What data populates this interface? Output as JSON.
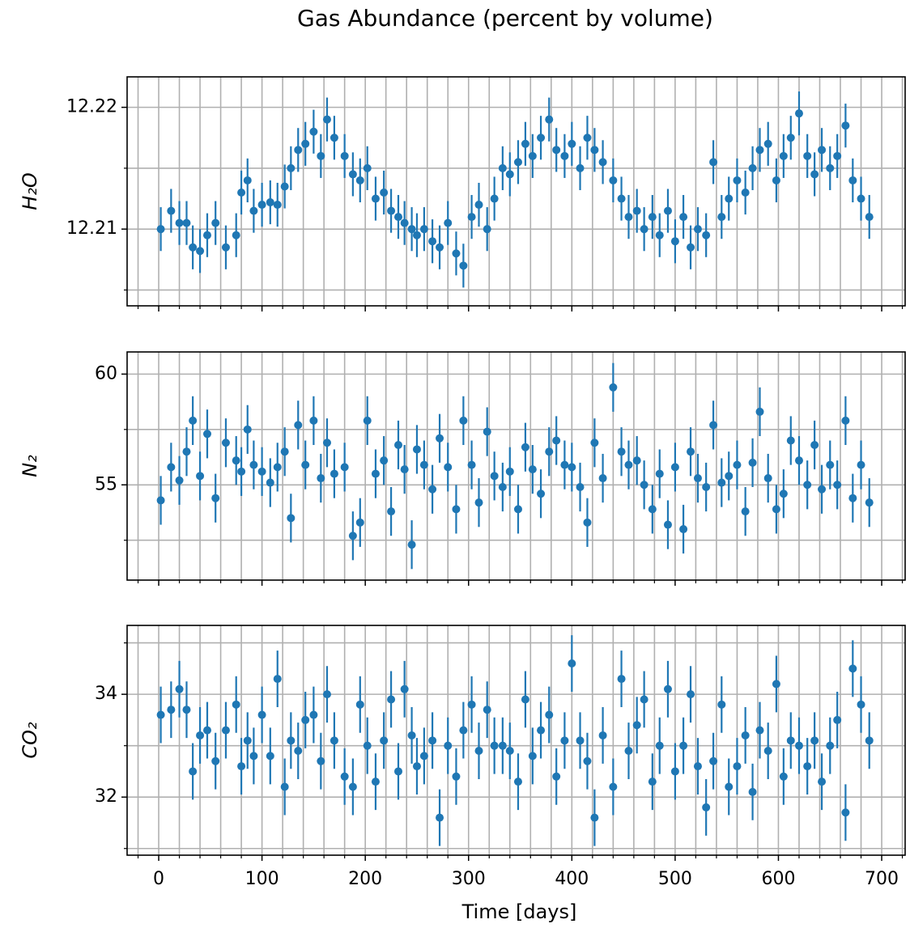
{
  "title": "Gas Abundance (percent by volume)",
  "chart_data": [
    {
      "type": "errorbar",
      "ylabel": "H₂O",
      "color": "#1f77b4",
      "grid": true,
      "xlim": [
        -30.6,
        722.7
      ],
      "xticks": [
        0,
        100,
        200,
        300,
        400,
        500,
        600,
        700
      ],
      "xminorticks": [
        -20,
        20,
        40,
        60,
        80,
        120,
        140,
        160,
        180,
        220,
        240,
        260,
        280,
        320,
        340,
        360,
        380,
        420,
        440,
        460,
        480,
        520,
        540,
        560,
        580,
        620,
        640,
        660,
        680,
        720
      ],
      "ylim": [
        12.2037,
        12.2225
      ],
      "yticks": [
        12.21,
        12.22
      ],
      "yminorticks": [
        12.205,
        12.215
      ],
      "yerr": 0.0018,
      "x": [
        2,
        12,
        20,
        27,
        33,
        40,
        47,
        55,
        65,
        75,
        80,
        86,
        92,
        100,
        108,
        115,
        122,
        128,
        135,
        142,
        150,
        157,
        163,
        170,
        180,
        188,
        195,
        202,
        210,
        218,
        225,
        232,
        238,
        245,
        250,
        257,
        265,
        272,
        280,
        288,
        295,
        303,
        310,
        318,
        325,
        333,
        340,
        348,
        355,
        362,
        370,
        378,
        385,
        393,
        400,
        408,
        415,
        422,
        430,
        440,
        448,
        455,
        463,
        470,
        478,
        485,
        493,
        500,
        508,
        515,
        522,
        530,
        537,
        545,
        552,
        560,
        568,
        575,
        582,
        590,
        598,
        605,
        612,
        620,
        628,
        635,
        642,
        650,
        657,
        665,
        672,
        680,
        688
      ],
      "values": [
        12.21,
        12.2115,
        12.2105,
        12.2105,
        12.2085,
        12.2082,
        12.2095,
        12.2105,
        12.2085,
        12.2095,
        12.213,
        12.214,
        12.2115,
        12.212,
        12.2122,
        12.212,
        12.2135,
        12.215,
        12.2165,
        12.217,
        12.218,
        12.216,
        12.219,
        12.2175,
        12.216,
        12.2145,
        12.214,
        12.215,
        12.2125,
        12.213,
        12.2115,
        12.211,
        12.2105,
        12.21,
        12.2095,
        12.21,
        12.209,
        12.2085,
        12.2105,
        12.208,
        12.207,
        12.211,
        12.212,
        12.21,
        12.2125,
        12.215,
        12.2145,
        12.2155,
        12.217,
        12.216,
        12.2175,
        12.219,
        12.2165,
        12.216,
        12.217,
        12.215,
        12.2175,
        12.2165,
        12.2155,
        12.214,
        12.2125,
        12.211,
        12.2115,
        12.21,
        12.211,
        12.2095,
        12.2115,
        12.209,
        12.211,
        12.2085,
        12.21,
        12.2095,
        12.2155,
        12.211,
        12.2125,
        12.214,
        12.213,
        12.215,
        12.2165,
        12.217,
        12.214,
        12.216,
        12.2175,
        12.2195,
        12.216,
        12.2145,
        12.2165,
        12.215,
        12.216,
        12.2185,
        12.214,
        12.2125,
        12.211
      ]
    },
    {
      "type": "errorbar",
      "ylabel": "N₂",
      "color": "#1f77b4",
      "grid": true,
      "xlim": [
        -30.6,
        722.7
      ],
      "xticks": [
        0,
        100,
        200,
        300,
        400,
        500,
        600,
        700
      ],
      "xminorticks": [
        -20,
        20,
        40,
        60,
        80,
        120,
        140,
        160,
        180,
        220,
        240,
        260,
        280,
        320,
        340,
        360,
        380,
        420,
        440,
        460,
        480,
        520,
        540,
        560,
        580,
        620,
        640,
        660,
        680,
        720
      ],
      "ylim": [
        50.7,
        61.0
      ],
      "yticks": [
        55,
        60
      ],
      "yminorticks": [
        52.5,
        57.5
      ],
      "yerr": 1.1,
      "x": [
        2,
        12,
        20,
        27,
        33,
        40,
        47,
        55,
        65,
        75,
        80,
        86,
        92,
        100,
        108,
        115,
        122,
        128,
        135,
        142,
        150,
        157,
        163,
        170,
        180,
        188,
        195,
        202,
        210,
        218,
        225,
        232,
        238,
        245,
        250,
        257,
        265,
        272,
        280,
        288,
        295,
        303,
        310,
        318,
        325,
        333,
        340,
        348,
        355,
        362,
        370,
        378,
        385,
        393,
        400,
        408,
        415,
        422,
        430,
        440,
        448,
        455,
        463,
        470,
        478,
        485,
        493,
        500,
        508,
        515,
        522,
        530,
        537,
        545,
        552,
        560,
        568,
        575,
        582,
        590,
        598,
        605,
        612,
        620,
        628,
        635,
        642,
        650,
        657,
        665,
        672,
        680,
        688
      ],
      "values": [
        54.3,
        55.8,
        55.2,
        56.5,
        57.9,
        55.4,
        57.3,
        54.4,
        56.9,
        56.1,
        55.6,
        57.5,
        55.9,
        55.6,
        55.1,
        55.8,
        56.5,
        53.5,
        57.7,
        55.9,
        57.9,
        55.3,
        56.9,
        55.5,
        55.8,
        52.7,
        53.3,
        57.9,
        55.5,
        56.1,
        53.8,
        56.8,
        55.7,
        52.3,
        56.6,
        55.9,
        54.8,
        57.1,
        55.8,
        53.9,
        57.9,
        55.9,
        54.2,
        57.4,
        55.4,
        54.9,
        55.6,
        53.9,
        56.7,
        55.7,
        54.6,
        56.5,
        57.0,
        55.9,
        55.8,
        54.9,
        53.3,
        56.9,
        55.3,
        59.4,
        56.5,
        55.9,
        56.1,
        55.0,
        53.9,
        55.5,
        53.2,
        55.8,
        53.0,
        56.5,
        55.3,
        54.9,
        57.7,
        55.1,
        55.4,
        55.9,
        53.8,
        56.0,
        58.3,
        55.3,
        53.9,
        54.6,
        57.0,
        56.1,
        55.0,
        56.8,
        54.8,
        55.9,
        55.0,
        57.9,
        54.4,
        55.9,
        54.2
      ]
    },
    {
      "type": "errorbar",
      "ylabel": "CO₂",
      "xlabel": "Time [days]",
      "color": "#1f77b4",
      "grid": true,
      "xlim": [
        -30.6,
        722.7
      ],
      "xticks": [
        0,
        100,
        200,
        300,
        400,
        500,
        600,
        700
      ],
      "xminorticks": [
        -20,
        20,
        40,
        60,
        80,
        120,
        140,
        160,
        180,
        220,
        240,
        260,
        280,
        320,
        340,
        360,
        380,
        420,
        440,
        460,
        480,
        520,
        540,
        560,
        580,
        620,
        640,
        660,
        680,
        720
      ],
      "ylim": [
        30.87,
        35.34
      ],
      "yticks": [
        32,
        34
      ],
      "yminorticks": [
        31,
        33,
        35
      ],
      "yerr": 0.55,
      "x": [
        2,
        12,
        20,
        27,
        33,
        40,
        47,
        55,
        65,
        75,
        80,
        86,
        92,
        100,
        108,
        115,
        122,
        128,
        135,
        142,
        150,
        157,
        163,
        170,
        180,
        188,
        195,
        202,
        210,
        218,
        225,
        232,
        238,
        245,
        250,
        257,
        265,
        272,
        280,
        288,
        295,
        303,
        310,
        318,
        325,
        333,
        340,
        348,
        355,
        362,
        370,
        378,
        385,
        393,
        400,
        408,
        415,
        422,
        430,
        440,
        448,
        455,
        463,
        470,
        478,
        485,
        493,
        500,
        508,
        515,
        522,
        530,
        537,
        545,
        552,
        560,
        568,
        575,
        582,
        590,
        598,
        605,
        612,
        620,
        628,
        635,
        642,
        650,
        657,
        665,
        672,
        680,
        688
      ],
      "values": [
        33.6,
        33.7,
        34.1,
        33.7,
        32.5,
        33.2,
        33.3,
        32.7,
        33.3,
        33.8,
        32.6,
        33.1,
        32.8,
        33.6,
        32.8,
        34.3,
        32.2,
        33.1,
        32.9,
        33.5,
        33.6,
        32.7,
        34.0,
        33.1,
        32.4,
        32.2,
        33.8,
        33.0,
        32.3,
        33.1,
        33.9,
        32.5,
        34.1,
        33.2,
        32.6,
        32.8,
        33.1,
        31.6,
        33.0,
        32.4,
        33.3,
        33.8,
        32.9,
        33.7,
        33.0,
        33.0,
        32.9,
        32.3,
        33.9,
        32.8,
        33.3,
        33.6,
        32.4,
        33.1,
        34.6,
        33.1,
        32.7,
        31.6,
        33.2,
        32.2,
        34.3,
        32.9,
        33.4,
        33.9,
        32.3,
        33.0,
        34.1,
        32.5,
        33.0,
        34.0,
        32.6,
        31.8,
        32.7,
        33.8,
        32.2,
        32.6,
        33.2,
        32.1,
        33.3,
        32.9,
        34.2,
        32.4,
        33.1,
        33.0,
        32.6,
        33.1,
        32.3,
        33.0,
        33.5,
        31.7,
        34.5,
        33.8,
        33.1
      ]
    }
  ]
}
